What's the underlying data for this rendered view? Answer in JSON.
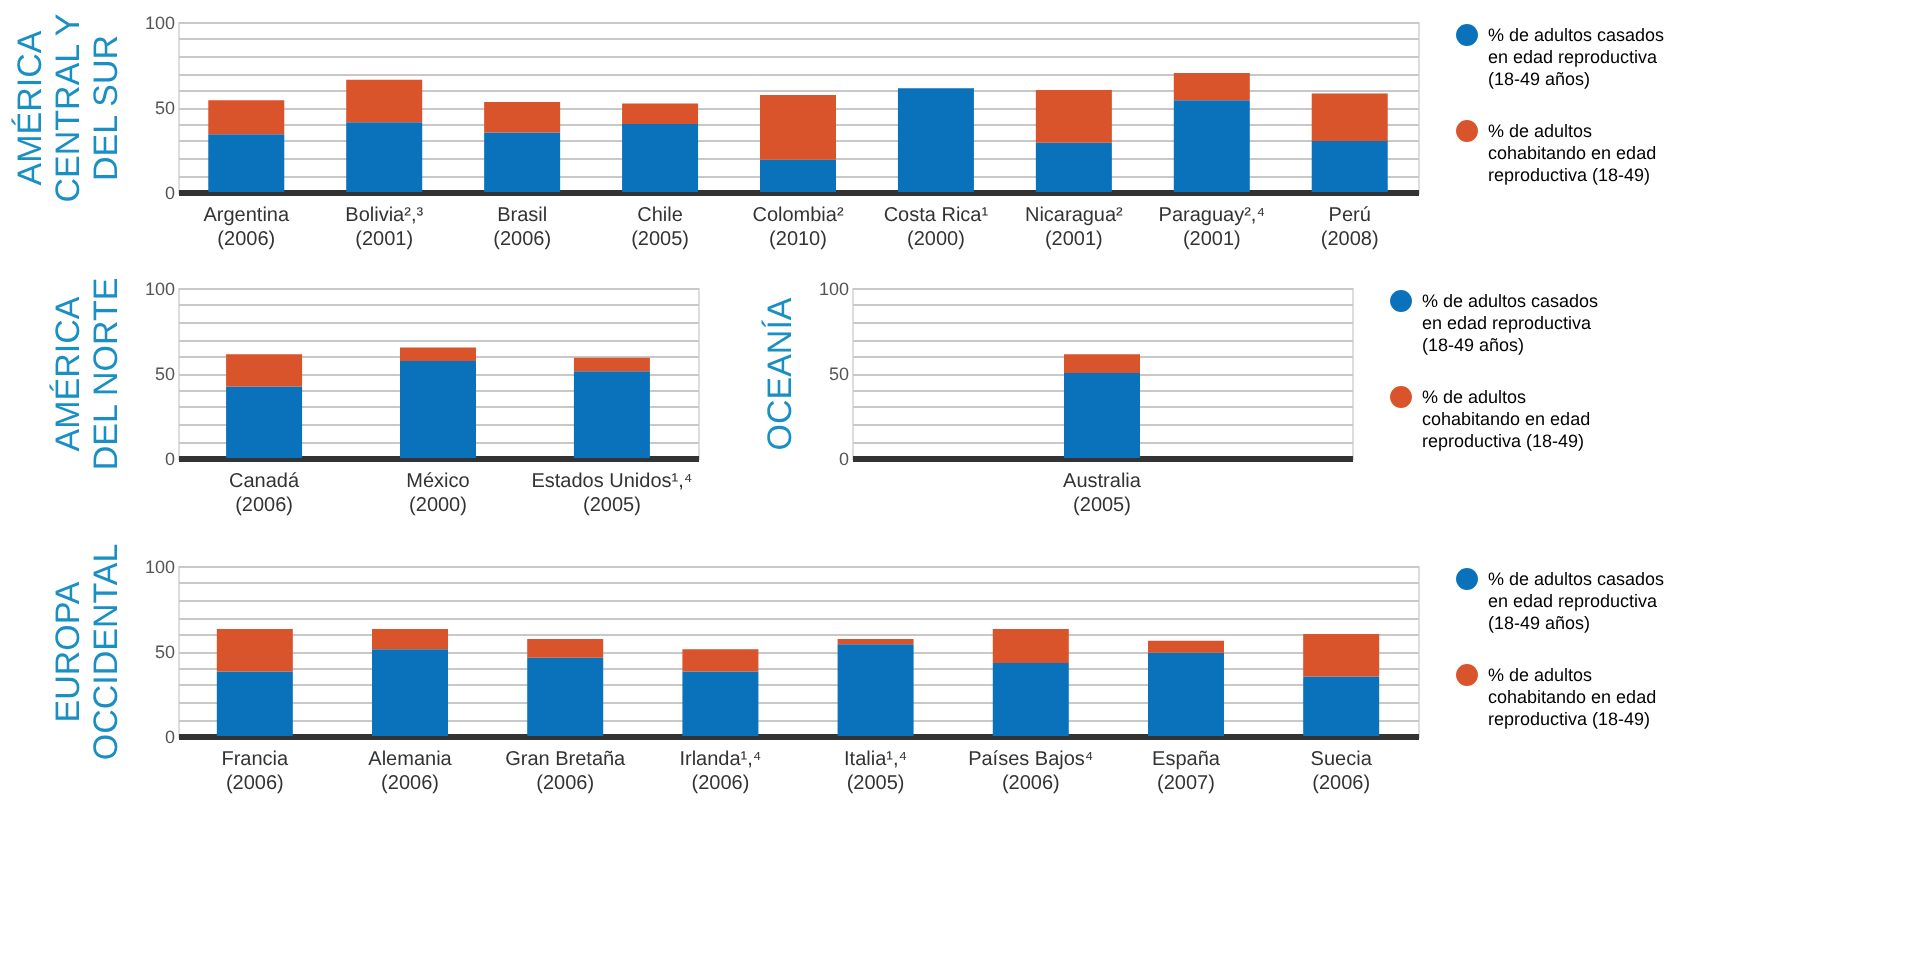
{
  "chart_data": [
    {
      "type": "bar",
      "stacked": true,
      "ylabel": "AMÉRICA CENTRAL Y DEL SUR",
      "categories": [
        "Argentina\n(2006)",
        "Bolivia²,³\n(2001)",
        "Brasil\n(2006)",
        "Chile\n(2005)",
        "Colombia²\n(2010)",
        "Costa Rica¹\n(2000)",
        "Nicaragua²\n(2001)",
        "Paraguay²,⁴\n(2001)",
        "Perú\n(2008)"
      ],
      "series": [
        {
          "name": "% de adultos casados en edad reproductiva (18-49 años)",
          "color": "#0a72bb",
          "values": [
            34,
            41,
            35,
            40,
            19,
            61,
            29,
            54,
            30
          ]
        },
        {
          "name": "% de adultos cohabitando en edad reproductiva (18-49)",
          "color": "#d9532b",
          "values": [
            20,
            25,
            18,
            12,
            38,
            0,
            31,
            16,
            28
          ]
        }
      ],
      "ylim": [
        0,
        100
      ],
      "yticks": [
        0,
        {
          "value": 10,
          "label": null
        },
        {
          "value": 20,
          "label": null
        },
        {
          "value": 30,
          "label": null
        },
        {
          "value": 40,
          "label": null
        },
        50,
        {
          "value": 60,
          "label": null
        },
        {
          "value": 70,
          "label": null
        },
        {
          "value": 80,
          "label": null
        },
        {
          "value": 90,
          "label": null
        },
        100
      ],
      "grid": "y",
      "legend": "right"
    },
    {
      "type": "bar",
      "stacked": true,
      "ylabel": "AMÉRICA DEL NORTE",
      "categories": [
        "Canadá\n(2006)",
        "México\n(2000)",
        "Estados Unidos¹,⁴\n(2005)"
      ],
      "series": [
        {
          "color": "#0a72bb",
          "values": [
            42,
            57,
            51
          ]
        },
        {
          "color": "#d9532b",
          "values": [
            19,
            8,
            8
          ]
        }
      ],
      "ylim": [
        0,
        100
      ],
      "yticks": [
        0,
        {
          "value": 10,
          "label": null
        },
        {
          "value": 20,
          "label": null
        },
        {
          "value": 30,
          "label": null
        },
        {
          "value": 40,
          "label": null
        },
        50,
        {
          "value": 60,
          "label": null
        },
        {
          "value": 70,
          "label": null
        },
        {
          "value": 80,
          "label": null
        },
        {
          "value": 90,
          "label": null
        },
        100
      ],
      "grid": "y"
    },
    {
      "type": "bar",
      "stacked": true,
      "ylabel": "OCEANÍA",
      "categories": [
        "Australia\n(2005)"
      ],
      "series": [
        {
          "name": "% de adultos casados en edad reproductiva (18-49 años)",
          "color": "#0a72bb",
          "values": [
            50
          ]
        },
        {
          "name": "% de adultos cohabitando en edad reproductiva (18-49)",
          "color": "#d9532b",
          "values": [
            11
          ]
        }
      ],
      "ylim": [
        0,
        100
      ],
      "yticks": [
        0,
        {
          "value": 10,
          "label": null
        },
        {
          "value": 20,
          "label": null
        },
        {
          "value": 30,
          "label": null
        },
        {
          "value": 40,
          "label": null
        },
        50,
        {
          "value": 60,
          "label": null
        },
        {
          "value": 70,
          "label": null
        },
        {
          "value": 80,
          "label": null
        },
        {
          "value": 90,
          "label": null
        },
        100
      ],
      "grid": "y",
      "legend": "right"
    },
    {
      "type": "bar",
      "stacked": true,
      "ylabel": "EUROPA OCCIDENTAL",
      "categories": [
        "Francia\n(2006)",
        "Alemania\n(2006)",
        "Gran Bretaña\n(2006)",
        "Irlanda¹,⁴\n(2006)",
        "Italia¹,⁴\n(2005)",
        "Países Bajos⁴\n(2006)",
        "España\n(2007)",
        "Suecia\n(2006)"
      ],
      "series": [
        {
          "name": "% de adultos casados en edad reproductiva (18-49 años)",
          "color": "#0a72bb",
          "values": [
            38,
            51,
            46,
            38,
            54,
            43,
            49,
            35
          ]
        },
        {
          "name": "% de adultos cohabitando en edad reproductiva (18-49)",
          "color": "#d9532b",
          "values": [
            25,
            12,
            11,
            13,
            3,
            20,
            7,
            25
          ]
        }
      ],
      "ylim": [
        0,
        100
      ],
      "yticks": [
        0,
        {
          "value": 10,
          "label": null
        },
        {
          "value": 20,
          "label": null
        },
        {
          "value": 30,
          "label": null
        },
        {
          "value": 40,
          "label": null
        },
        50,
        {
          "value": 60,
          "label": null
        },
        {
          "value": 70,
          "label": null
        },
        {
          "value": 80,
          "label": null
        },
        {
          "value": 90,
          "label": null
        },
        100
      ],
      "grid": "y",
      "legend": "right"
    }
  ]
}
